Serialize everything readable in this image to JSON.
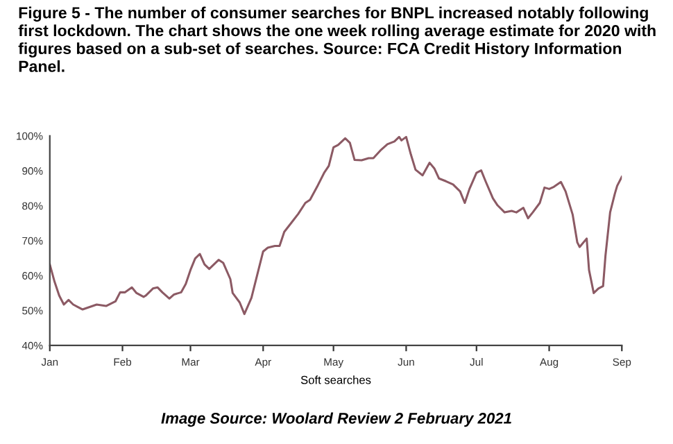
{
  "chart_data": {
    "type": "line",
    "title": "Figure 5 - The number of consumer searches for BNPL increased notably following first lockdown. The chart shows the one week rolling average estimate for 2020 with figures based on a sub-set of searches. Source: FCA Credit History Information Panel.",
    "xlabel": "Soft searches",
    "annotations": [
      "Image Source: Woolard Review 2 February 2021"
    ],
    "x": [
      "2020-01-01",
      "2020-01-03",
      "2020-01-05",
      "2020-01-07",
      "2020-01-09",
      "2020-01-11",
      "2020-01-13",
      "2020-01-15",
      "2020-01-18",
      "2020-01-21",
      "2020-01-25",
      "2020-01-29",
      "2020-01-31",
      "2020-02-02",
      "2020-02-05",
      "2020-02-07",
      "2020-02-10",
      "2020-02-11",
      "2020-02-14",
      "2020-02-16",
      "2020-02-18",
      "2020-02-21",
      "2020-02-23",
      "2020-02-26",
      "2020-02-28",
      "2020-03-01",
      "2020-03-03",
      "2020-03-05",
      "2020-03-07",
      "2020-03-09",
      "2020-03-11",
      "2020-03-13",
      "2020-03-15",
      "2020-03-18",
      "2020-03-19",
      "2020-03-22",
      "2020-03-24",
      "2020-03-27",
      "2020-03-30",
      "2020-04-01",
      "2020-04-03",
      "2020-04-06",
      "2020-04-08",
      "2020-04-10",
      "2020-04-13",
      "2020-04-16",
      "2020-04-19",
      "2020-04-21",
      "2020-04-24",
      "2020-04-27",
      "2020-04-29",
      "2020-05-01",
      "2020-05-03",
      "2020-05-06",
      "2020-05-08",
      "2020-05-10",
      "2020-05-13",
      "2020-05-16",
      "2020-05-18",
      "2020-05-21",
      "2020-05-24",
      "2020-05-27",
      "2020-05-29",
      "2020-05-30",
      "2020-06-01",
      "2020-06-03",
      "2020-06-05",
      "2020-06-08",
      "2020-06-11",
      "2020-06-13",
      "2020-06-15",
      "2020-06-18",
      "2020-06-21",
      "2020-06-24",
      "2020-06-26",
      "2020-06-28",
      "2020-07-01",
      "2020-07-03",
      "2020-07-05",
      "2020-07-08",
      "2020-07-10",
      "2020-07-13",
      "2020-07-16",
      "2020-07-18",
      "2020-07-21",
      "2020-07-23",
      "2020-07-25",
      "2020-07-28",
      "2020-07-30",
      "2020-08-01",
      "2020-08-03",
      "2020-08-06",
      "2020-08-08",
      "2020-08-11",
      "2020-08-13",
      "2020-08-14",
      "2020-08-17",
      "2020-08-18",
      "2020-08-20",
      "2020-08-22",
      "2020-08-24",
      "2020-08-25",
      "2020-08-27",
      "2020-08-29",
      "2020-08-30",
      "2020-09-01"
    ],
    "series": [
      {
        "color": "#8c5a64",
        "values": [
          63.2,
          58.3,
          54.3,
          51.7,
          53.0,
          51.7,
          51.0,
          50.3,
          51.0,
          51.7,
          51.3,
          52.6,
          55.2,
          55.2,
          56.6,
          55.0,
          53.9,
          54.3,
          56.3,
          56.6,
          55.2,
          53.4,
          54.6,
          55.2,
          57.6,
          61.6,
          64.9,
          66.2,
          63.2,
          61.9,
          63.2,
          64.5,
          63.6,
          59.0,
          55.0,
          52.3,
          49.0,
          53.6,
          61.6,
          66.9,
          68.0,
          68.5,
          68.5,
          72.5,
          75.1,
          77.7,
          80.8,
          81.7,
          85.4,
          89.4,
          91.4,
          96.7,
          97.4,
          99.3,
          98.0,
          93.1,
          93.0,
          93.6,
          93.6,
          95.8,
          97.6,
          98.4,
          99.7,
          98.7,
          99.7,
          94.7,
          90.3,
          88.7,
          92.3,
          90.7,
          87.8,
          87.0,
          86.1,
          84.1,
          80.8,
          84.8,
          89.4,
          90.1,
          86.8,
          82.1,
          80.1,
          78.1,
          78.5,
          78.1,
          79.4,
          76.4,
          78.1,
          80.8,
          85.2,
          84.8,
          85.4,
          86.8,
          84.1,
          77.5,
          69.5,
          68.2,
          70.6,
          61.6,
          55.0,
          56.3,
          57.0,
          65.6,
          78.1,
          83.4,
          85.7,
          88.3
        ]
      }
    ],
    "xlim": [
      "2020-01-01",
      "2020-09-01"
    ],
    "xticks": [
      {
        "value": "2020-01-01",
        "label": "Jan"
      },
      {
        "value": "2020-02-01",
        "label": "Feb"
      },
      {
        "value": "2020-03-01",
        "label": "Mar"
      },
      {
        "value": "2020-04-01",
        "label": "Apr"
      },
      {
        "value": "2020-05-01",
        "label": "May"
      },
      {
        "value": "2020-06-01",
        "label": "Jun"
      },
      {
        "value": "2020-07-01",
        "label": "Jul"
      },
      {
        "value": "2020-08-01",
        "label": "Aug"
      },
      {
        "value": "2020-09-01",
        "label": "Sep"
      }
    ],
    "ylim": [
      40,
      100
    ],
    "yticks": [
      {
        "value": 40,
        "label": "40%"
      },
      {
        "value": 50,
        "label": "50%"
      },
      {
        "value": 60,
        "label": "60%"
      },
      {
        "value": 70,
        "label": "70%"
      },
      {
        "value": 80,
        "label": "80%"
      },
      {
        "value": 90,
        "label": "90%"
      },
      {
        "value": 100,
        "label": "100%"
      }
    ],
    "grid": false,
    "legend": false,
    "marker": "none",
    "line_style": "solid"
  }
}
